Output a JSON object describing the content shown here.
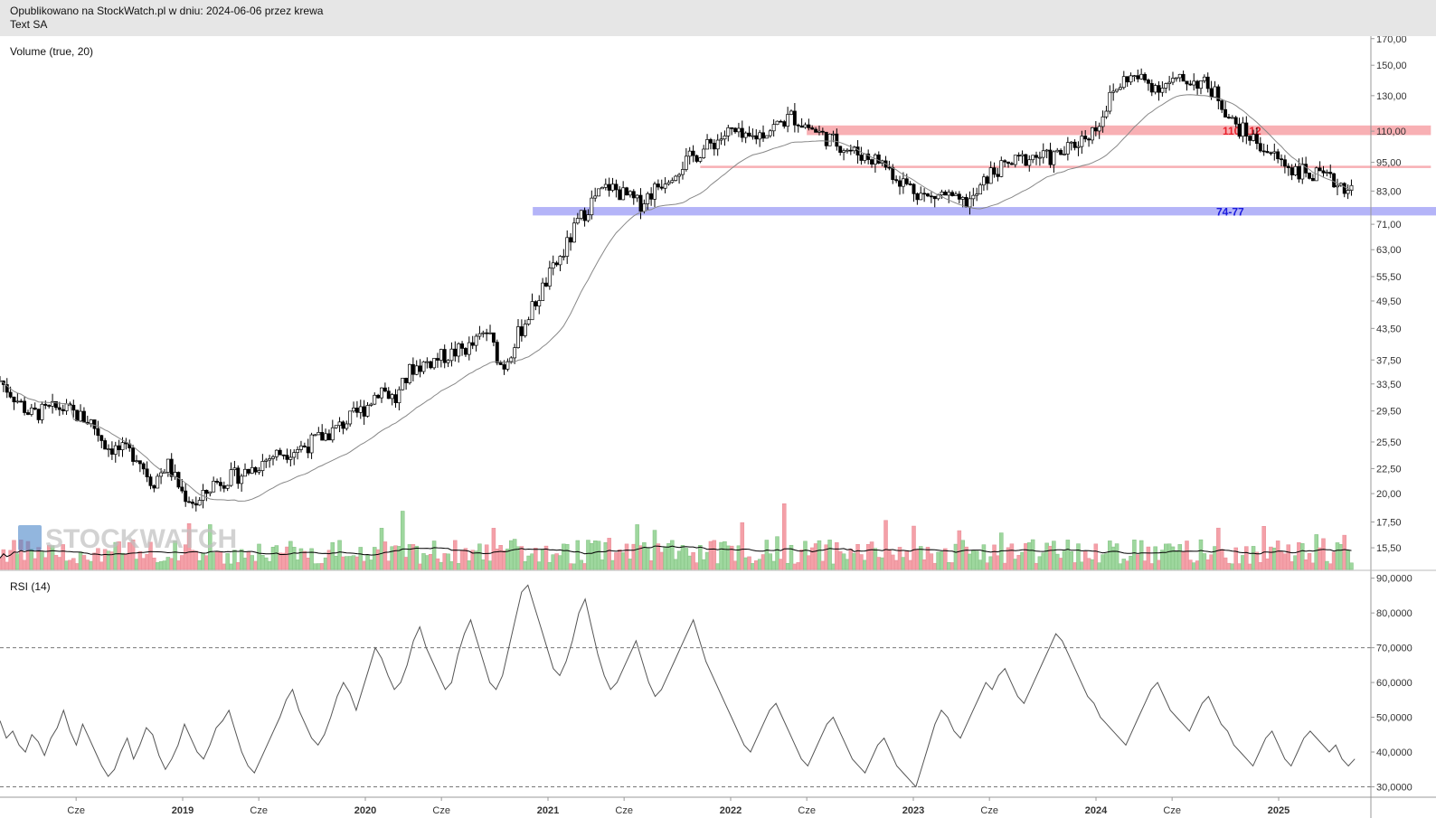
{
  "header": {
    "line1": "Opublikowano na StockWatch.pl w dniu: 2024-06-06 przez krewa",
    "line2": "Text SA"
  },
  "watermark": "STOCKWATCH",
  "panels": {
    "volume_label": "Volume (true, 20)",
    "rsi_label": "RSI (14)"
  },
  "colors": {
    "up": "#9ed79e",
    "down": "#f4a0a8",
    "resistance": "#f8b0b4",
    "support": "#b4b4f8",
    "resistance_text": "#e8202c",
    "support_text": "#1a1adc"
  },
  "chart_data": [
    {
      "type": "candlestick",
      "scale": "log",
      "ylim": [
        14,
        172
      ],
      "yticks": [
        "15,50",
        "17,50",
        "20,00",
        "22,50",
        "25,50",
        "29,50",
        "33,50",
        "37,50",
        "43,50",
        "49,50",
        "55,50",
        "63,00",
        "71,00",
        "83,00",
        "95,00",
        "110,00",
        "130,00",
        "150,00",
        "170,00"
      ],
      "xticks": [
        "Cze",
        "2019",
        "Cze",
        "2020",
        "Cze",
        "2021",
        "Cze",
        "2022",
        "Cze",
        "2023",
        "Cze",
        "2024",
        "Cze",
        "2025"
      ],
      "x_range": [
        "2018-01",
        "2025-06"
      ],
      "close_path": [
        [
          "2018-01",
          34
        ],
        [
          "2018-03",
          29
        ],
        [
          "2018-05",
          30
        ],
        [
          "2018-07",
          28
        ],
        [
          "2018-08",
          25
        ],
        [
          "2018-10",
          24
        ],
        [
          "2018-11",
          21
        ],
        [
          "2018-12",
          23
        ],
        [
          "2019-01",
          20
        ],
        [
          "2019-02",
          19
        ],
        [
          "2019-03",
          21
        ],
        [
          "2019-05",
          22
        ],
        [
          "2019-06",
          23
        ],
        [
          "2019-07",
          24
        ],
        [
          "2019-09",
          25
        ],
        [
          "2019-11",
          27
        ],
        [
          "2020-01",
          30
        ],
        [
          "2020-02",
          33
        ],
        [
          "2020-03",
          31
        ],
        [
          "2020-04",
          36
        ],
        [
          "2020-06",
          38
        ],
        [
          "2020-08",
          40
        ],
        [
          "2020-09",
          43
        ],
        [
          "2020-10",
          36
        ],
        [
          "2020-11",
          42
        ],
        [
          "2021-01",
          55
        ],
        [
          "2021-02",
          62
        ],
        [
          "2021-03",
          72
        ],
        [
          "2021-04",
          80
        ],
        [
          "2021-05",
          85
        ],
        [
          "2021-07",
          78
        ],
        [
          "2021-09",
          90
        ],
        [
          "2021-11",
          100
        ],
        [
          "2022-01",
          110
        ],
        [
          "2022-02",
          105
        ],
        [
          "2022-04",
          113
        ],
        [
          "2022-05",
          118
        ],
        [
          "2022-07",
          108
        ],
        [
          "2022-09",
          100
        ],
        [
          "2022-11",
          95
        ],
        [
          "2022-12",
          88
        ],
        [
          "2023-02",
          80
        ],
        [
          "2023-03",
          82
        ],
        [
          "2023-04",
          78
        ],
        [
          "2023-05",
          80
        ],
        [
          "2023-06",
          90
        ],
        [
          "2023-08",
          96
        ],
        [
          "2023-09",
          98
        ],
        [
          "2023-10",
          97
        ],
        [
          "2023-11",
          100
        ],
        [
          "2024-01",
          112
        ],
        [
          "2024-02",
          130
        ],
        [
          "2024-03",
          142
        ],
        [
          "2024-04",
          140
        ],
        [
          "2024-05",
          136
        ],
        [
          "2024-07",
          140
        ],
        [
          "2024-08",
          138
        ],
        [
          "2024-09",
          130
        ],
        [
          "2024-10",
          114
        ],
        [
          "2024-11",
          108
        ],
        [
          "2024-12",
          102
        ],
        [
          "2025-01",
          96
        ],
        [
          "2025-02",
          92
        ],
        [
          "2025-03",
          90
        ],
        [
          "2025-04",
          88
        ],
        [
          "2025-05",
          86
        ],
        [
          "2025-06",
          83
        ]
      ],
      "zones": [
        {
          "label": "110-112",
          "low": 108,
          "high": 113,
          "from": "2022-06",
          "to": "2025-11",
          "kind": "resistance"
        },
        {
          "label": "",
          "low": 92.5,
          "high": 93.5,
          "from": "2021-11",
          "to": "2025-11",
          "kind": "resistance"
        },
        {
          "label": "74-77",
          "low": 74,
          "high": 77,
          "from": "2020-12",
          "to": "2025-12",
          "kind": "support"
        }
      ]
    },
    {
      "type": "bar",
      "series": [
        {
          "name": "Volume (true, 20)"
        }
      ],
      "note_ma": "20-period moving average line"
    },
    {
      "type": "line",
      "title": "RSI (14)",
      "ylim": [
        27,
        92
      ],
      "yticks": [
        "30,0000",
        "40,0000",
        "50,0000",
        "60,0000",
        "70,0000",
        "80,0000",
        "90,0000"
      ],
      "reference_lines": [
        70,
        30
      ],
      "values": [
        49,
        44,
        46,
        42,
        40,
        45,
        43,
        39,
        44,
        47,
        52,
        46,
        42,
        48,
        44,
        40,
        36,
        33,
        35,
        40,
        44,
        38,
        42,
        47,
        45,
        39,
        35,
        38,
        42,
        48,
        44,
        40,
        38,
        42,
        47,
        49,
        52,
        46,
        40,
        36,
        34,
        38,
        42,
        46,
        50,
        55,
        58,
        52,
        48,
        44,
        42,
        45,
        50,
        56,
        60,
        57,
        52,
        58,
        64,
        70,
        67,
        62,
        58,
        60,
        65,
        72,
        76,
        70,
        66,
        62,
        58,
        60,
        68,
        74,
        78,
        72,
        66,
        60,
        58,
        62,
        70,
        78,
        86,
        88,
        82,
        76,
        70,
        64,
        62,
        66,
        72,
        80,
        84,
        76,
        68,
        62,
        58,
        60,
        64,
        68,
        72,
        66,
        60,
        56,
        58,
        62,
        66,
        70,
        74,
        78,
        72,
        66,
        62,
        58,
        54,
        50,
        46,
        42,
        40,
        44,
        48,
        52,
        54,
        50,
        46,
        42,
        38,
        36,
        40,
        44,
        48,
        50,
        46,
        42,
        38,
        36,
        34,
        38,
        42,
        44,
        40,
        36,
        34,
        32,
        30,
        36,
        42,
        48,
        52,
        50,
        46,
        44,
        48,
        52,
        56,
        60,
        58,
        62,
        64,
        60,
        56,
        54,
        58,
        62,
        66,
        70,
        74,
        72,
        68,
        64,
        60,
        56,
        54,
        50,
        48,
        46,
        44,
        42,
        46,
        50,
        54,
        58,
        60,
        56,
        52,
        50,
        48,
        46,
        50,
        54,
        56,
        52,
        48,
        46,
        42,
        40,
        38,
        36,
        40,
        44,
        46,
        42,
        38,
        36,
        40,
        44,
        46,
        44,
        42,
        40,
        42,
        38,
        36,
        38
      ]
    }
  ]
}
